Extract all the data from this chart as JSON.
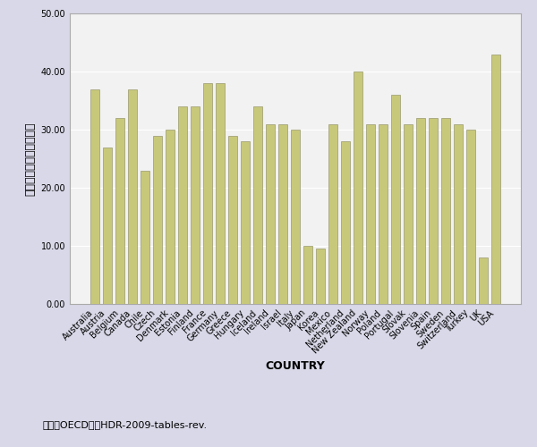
{
  "categories": [
    "Australia",
    "Austria",
    "Belgium",
    "Canada",
    "Chile",
    "Czech",
    "Denmark",
    "Estonia",
    "Finland",
    "France",
    "Germany",
    "Greece",
    "Hungary",
    "Iceland",
    "Ireland",
    "Israel",
    "Italy",
    "Japan",
    "Korea",
    "Mexico",
    "Netherland",
    "New Zealand",
    "Norway",
    "Poland",
    "Portugal",
    "Slovak",
    "Slovenia",
    "Spain",
    "Sweden",
    "Switzerland",
    "Turkey",
    "UK",
    "USA"
  ],
  "values": [
    37.0,
    27.0,
    32.0,
    37.0,
    23.0,
    29.0,
    30.0,
    34.0,
    34.0,
    38.0,
    38.0,
    29.0,
    28.0,
    34.0,
    31.0,
    31.0,
    30.0,
    10.0,
    9.5,
    31.0,
    28.0,
    40.0,
    31.0,
    31.0,
    36.0,
    31.0,
    32.0,
    32.0,
    32.0,
    31.0,
    30.0,
    8.0,
    43.0
  ],
  "bar_color": "#C8C87A",
  "bar_edge_color": "#999970",
  "ylabel": "女性管理職割合の平均値",
  "xlabel": "COUNTRY",
  "ylim": [
    0,
    50
  ],
  "yticks": [
    0.0,
    10.0,
    20.0,
    30.0,
    40.0,
    50.0
  ],
  "ytick_labels": [
    "0.00",
    "10.00",
    "20.00",
    "30.00",
    "40.00",
    "50.00"
  ],
  "caption": "出典：OECD，　HDR-2009-tables-rev.",
  "fig_bg_color": "#D8D8E8",
  "plot_bg_color": "#F2F2F2",
  "bar_width": 0.75,
  "tick_fontsize": 7,
  "xlabel_fontsize": 9,
  "ylabel_fontsize": 9
}
